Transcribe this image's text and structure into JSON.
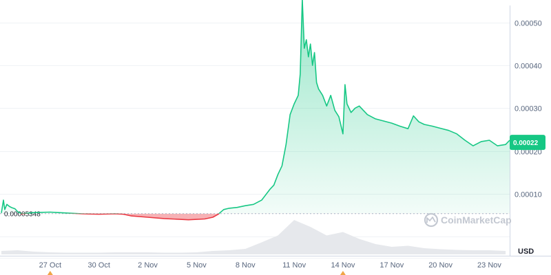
{
  "watermark": {
    "text": "CoinMarketCap",
    "icon": "coinmarketcap-logo-icon"
  },
  "colors": {
    "up": "#16c784",
    "down": "#ea3943",
    "grid": "#eff2f5",
    "axis": "#cfd6e4",
    "text": "#58667e",
    "badge": "#16c784",
    "volume": "#e6e8ec"
  },
  "chart_data": {
    "type": "area",
    "currency_label": "USD",
    "reference_price": 5.348e-05,
    "reference_price_label": "0.00005348",
    "current_price": 0.00022,
    "current_price_label": "0.00022",
    "ylim": [
      -4.5e-05,
      0.00054
    ],
    "ticks_y": [
      {
        "value": 0.0001,
        "label": "0.00010"
      },
      {
        "value": 0.0002,
        "label": "0.00020"
      },
      {
        "value": 0.0003,
        "label": "0.00030"
      },
      {
        "value": 0.0004,
        "label": "0.00040"
      },
      {
        "value": 0.0005,
        "label": "0.00050"
      }
    ],
    "x_range": [
      "2023-10-24",
      "2023-11-24T06:00"
    ],
    "ticks_x": [
      {
        "date": "2023-10-27",
        "label": "27 Oct"
      },
      {
        "date": "2023-10-30",
        "label": "30 Oct"
      },
      {
        "date": "2023-11-02",
        "label": "2 Nov"
      },
      {
        "date": "2023-11-05",
        "label": "5 Nov"
      },
      {
        "date": "2023-11-08",
        "label": "8 Nov"
      },
      {
        "date": "2023-11-11",
        "label": "11 Nov"
      },
      {
        "date": "2023-11-14",
        "label": "14 Nov"
      },
      {
        "date": "2023-11-17",
        "label": "17 Nov"
      },
      {
        "date": "2023-11-20",
        "label": "20 Nov"
      },
      {
        "date": "2023-11-23",
        "label": "23 Nov"
      }
    ],
    "event_markers": [
      "2023-10-27",
      "2023-11-14"
    ],
    "series": [
      {
        "values": [
          [
            "2023-10-24T00:00",
            5.5e-05
          ],
          [
            "2023-10-24T03:00",
            8.5e-05
          ],
          [
            "2023-10-24T05:00",
            6.3e-05
          ],
          [
            "2023-10-24T08:00",
            7.5e-05
          ],
          [
            "2023-10-24T12:00",
            7e-05
          ],
          [
            "2023-10-24T16:00",
            6.7e-05
          ],
          [
            "2023-10-24T20:00",
            6.5e-05
          ],
          [
            "2023-10-25T00:00",
            5.8e-05
          ],
          [
            "2023-10-25T06:00",
            5.3e-05
          ],
          [
            "2023-10-26T00:00",
            5.6e-05
          ],
          [
            "2023-10-27T00:00",
            5.7e-05
          ],
          [
            "2023-10-27T12:00",
            5.6e-05
          ],
          [
            "2023-10-28T00:00",
            5.5e-05
          ],
          [
            "2023-10-29T00:00",
            5.3e-05
          ],
          [
            "2023-10-30T00:00",
            5.2e-05
          ],
          [
            "2023-10-31T00:00",
            5.3e-05
          ],
          [
            "2023-10-31T12:00",
            5.2e-05
          ],
          [
            "2023-11-01T00:00",
            4.8e-05
          ],
          [
            "2023-11-02T00:00",
            4.5e-05
          ],
          [
            "2023-11-03T00:00",
            4.2e-05
          ],
          [
            "2023-11-04T00:00",
            4e-05
          ],
          [
            "2023-11-04T12:00",
            3.9e-05
          ],
          [
            "2023-11-05T00:00",
            4e-05
          ],
          [
            "2023-11-05T12:00",
            4.1e-05
          ],
          [
            "2023-11-06T00:00",
            4.5e-05
          ],
          [
            "2023-11-06T08:00",
            5.2e-05
          ],
          [
            "2023-11-06T16:00",
            6.3e-05
          ],
          [
            "2023-11-07T00:00",
            6.6e-05
          ],
          [
            "2023-11-07T12:00",
            6.8e-05
          ],
          [
            "2023-11-08T00:00",
            7.2e-05
          ],
          [
            "2023-11-08T12:00",
            7.5e-05
          ],
          [
            "2023-11-09T00:00",
            8.5e-05
          ],
          [
            "2023-11-09T12:00",
            0.00011
          ],
          [
            "2023-11-09T18:00",
            0.00012
          ],
          [
            "2023-11-10T00:00",
            0.000145
          ],
          [
            "2023-11-10T06:00",
            0.000165
          ],
          [
            "2023-11-10T12:00",
            0.000215
          ],
          [
            "2023-11-10T18:00",
            0.000285
          ],
          [
            "2023-11-11T00:00",
            0.00031
          ],
          [
            "2023-11-11T06:00",
            0.00033
          ],
          [
            "2023-11-11T09:00",
            0.00038
          ],
          [
            "2023-11-11T12:00",
            0.000555
          ],
          [
            "2023-11-11T15:00",
            0.00044
          ],
          [
            "2023-11-11T18:00",
            0.00046
          ],
          [
            "2023-11-11T21:00",
            0.00042
          ],
          [
            "2023-11-12T00:00",
            0.00045
          ],
          [
            "2023-11-12T03:00",
            0.0004
          ],
          [
            "2023-11-12T06:00",
            0.00043
          ],
          [
            "2023-11-12T09:00",
            0.00036
          ],
          [
            "2023-11-12T12:00",
            0.000345
          ],
          [
            "2023-11-12T18:00",
            0.00033
          ],
          [
            "2023-11-13T00:00",
            0.000305
          ],
          [
            "2023-11-13T06:00",
            0.00033
          ],
          [
            "2023-11-13T12:00",
            0.000295
          ],
          [
            "2023-11-13T18:00",
            0.00028
          ],
          [
            "2023-11-14T00:00",
            0.00024
          ],
          [
            "2023-11-14T03:00",
            0.000355
          ],
          [
            "2023-11-14T06:00",
            0.00031
          ],
          [
            "2023-11-14T12:00",
            0.00029
          ],
          [
            "2023-11-14T18:00",
            0.0003
          ],
          [
            "2023-11-15T00:00",
            0.000305
          ],
          [
            "2023-11-15T12:00",
            0.000285
          ],
          [
            "2023-11-16T00:00",
            0.000275
          ],
          [
            "2023-11-16T12:00",
            0.00027
          ],
          [
            "2023-11-17T00:00",
            0.000265
          ],
          [
            "2023-11-17T12:00",
            0.000258
          ],
          [
            "2023-11-18T00:00",
            0.000252
          ],
          [
            "2023-11-18T08:00",
            0.000282
          ],
          [
            "2023-11-18T16:00",
            0.000268
          ],
          [
            "2023-11-19T00:00",
            0.000262
          ],
          [
            "2023-11-19T12:00",
            0.000258
          ],
          [
            "2023-11-20T00:00",
            0.000253
          ],
          [
            "2023-11-20T12:00",
            0.000248
          ],
          [
            "2023-11-21T00:00",
            0.00024
          ],
          [
            "2023-11-21T12:00",
            0.000225
          ],
          [
            "2023-11-22T00:00",
            0.000212
          ],
          [
            "2023-11-22T12:00",
            0.000222
          ],
          [
            "2023-11-23T00:00",
            0.000225
          ],
          [
            "2023-11-23T12:00",
            0.000212
          ],
          [
            "2023-11-24T00:00",
            0.000215
          ],
          [
            "2023-11-24T06:00",
            0.000225
          ]
        ]
      }
    ],
    "volume": [
      [
        "2023-10-24",
        0.1
      ],
      [
        "2023-10-25",
        0.12
      ],
      [
        "2023-10-26",
        0.08
      ],
      [
        "2023-10-27",
        0.06
      ],
      [
        "2023-10-28",
        0.05
      ],
      [
        "2023-10-29",
        0.05
      ],
      [
        "2023-10-30",
        0.05
      ],
      [
        "2023-10-31",
        0.06
      ],
      [
        "2023-11-01",
        0.06
      ],
      [
        "2023-11-02",
        0.06
      ],
      [
        "2023-11-03",
        0.05
      ],
      [
        "2023-11-04",
        0.05
      ],
      [
        "2023-11-05",
        0.06
      ],
      [
        "2023-11-06",
        0.1
      ],
      [
        "2023-11-07",
        0.12
      ],
      [
        "2023-11-08",
        0.16
      ],
      [
        "2023-11-09",
        0.35
      ],
      [
        "2023-11-10",
        0.55
      ],
      [
        "2023-11-11",
        1.0
      ],
      [
        "2023-11-12",
        0.8
      ],
      [
        "2023-11-13",
        0.55
      ],
      [
        "2023-11-14",
        0.65
      ],
      [
        "2023-11-15",
        0.45
      ],
      [
        "2023-11-16",
        0.3
      ],
      [
        "2023-11-17",
        0.22
      ],
      [
        "2023-11-18",
        0.25
      ],
      [
        "2023-11-19",
        0.18
      ],
      [
        "2023-11-20",
        0.15
      ],
      [
        "2023-11-21",
        0.13
      ],
      [
        "2023-11-22",
        0.12
      ],
      [
        "2023-11-23",
        0.12
      ],
      [
        "2023-11-24",
        0.1
      ]
    ]
  }
}
